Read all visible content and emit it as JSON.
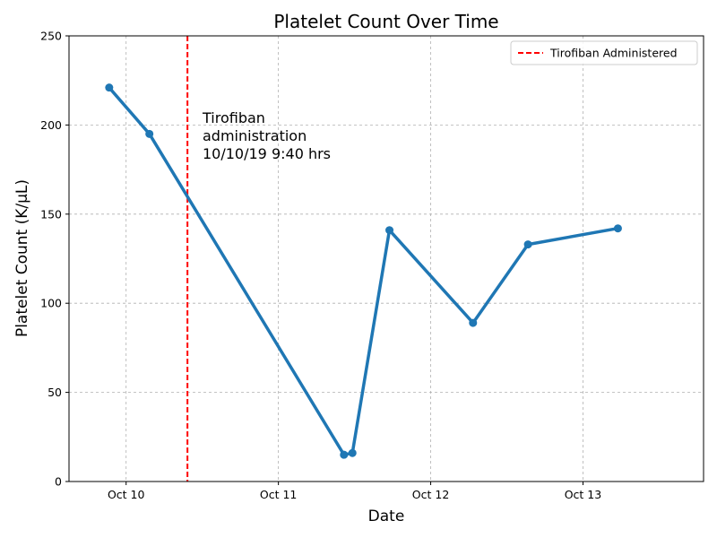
{
  "chart_data": {
    "type": "line",
    "title": "Platelet Count Over Time",
    "xlabel": "Date",
    "ylabel": "Platelet Count (K/μL)",
    "xlim": [
      "2019-10-09 15:00",
      "2019-10-13 19:00"
    ],
    "ylim": [
      0,
      250
    ],
    "y_ticks": [
      0,
      50,
      100,
      150,
      200,
      250
    ],
    "x_ticks": [
      {
        "date": "2019-10-10 00:00",
        "label": "Oct 10"
      },
      {
        "date": "2019-10-11 00:00",
        "label": "Oct 11"
      },
      {
        "date": "2019-10-12 00:00",
        "label": "Oct 12"
      },
      {
        "date": "2019-10-13 00:00",
        "label": "Oct 13"
      }
    ],
    "grid": true,
    "legend_position": "upper right",
    "series": [
      {
        "color": "#1f77b4",
        "points": [
          {
            "x": "2019-10-09 21:20",
            "y": 221
          },
          {
            "x": "2019-10-10 03:40",
            "y": 195
          },
          {
            "x": "2019-10-11 10:20",
            "y": 15
          },
          {
            "x": "2019-10-11 11:40",
            "y": 16
          },
          {
            "x": "2019-10-11 17:30",
            "y": 141
          },
          {
            "x": "2019-10-12 06:40",
            "y": 89
          },
          {
            "x": "2019-10-12 15:20",
            "y": 133
          },
          {
            "x": "2019-10-13 05:30",
            "y": 142
          }
        ]
      }
    ],
    "vline": {
      "x": "2019-10-10 09:40",
      "color": "#ff0000",
      "style": "dashed",
      "legend_label": "Tirofiban Administered"
    },
    "annotation": {
      "lines": [
        "Tirofiban",
        "administration",
        "10/10/19 9:40 hrs"
      ]
    }
  }
}
